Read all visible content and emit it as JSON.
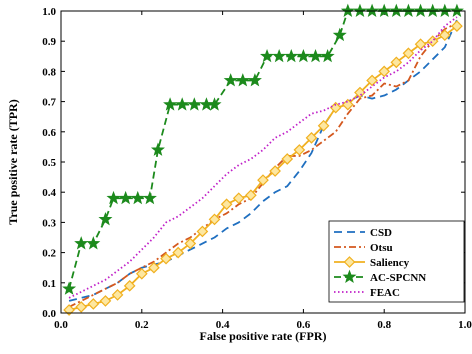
{
  "chart_data": {
    "type": "line",
    "title": "",
    "xlabel": "False positive rate (FPR)",
    "ylabel": "True positive rate (TPR)",
    "xlim": [
      0,
      1
    ],
    "ylim": [
      0,
      1
    ],
    "x_ticks": [
      "0.0",
      "0.2",
      "0.4",
      "0.6",
      "0.8",
      "1.0"
    ],
    "y_ticks": [
      "0.0",
      "0.1",
      "0.2",
      "0.3",
      "0.4",
      "0.5",
      "0.6",
      "0.7",
      "0.8",
      "0.9",
      "1.0"
    ],
    "grid": false,
    "legend_position": "bottom-right",
    "series": [
      {
        "name": "CSD",
        "color": "#1f6fc0",
        "dash": "8,5",
        "marker": "none",
        "x": [
          0.02,
          0.05,
          0.08,
          0.11,
          0.14,
          0.17,
          0.2,
          0.23,
          0.26,
          0.29,
          0.32,
          0.35,
          0.38,
          0.41,
          0.44,
          0.47,
          0.5,
          0.53,
          0.56,
          0.59,
          0.62,
          0.65,
          0.68,
          0.71,
          0.74,
          0.77,
          0.8,
          0.83,
          0.86,
          0.89,
          0.92,
          0.95,
          0.98
        ],
        "y": [
          0.04,
          0.05,
          0.06,
          0.08,
          0.1,
          0.13,
          0.15,
          0.16,
          0.17,
          0.19,
          0.21,
          0.23,
          0.25,
          0.28,
          0.3,
          0.33,
          0.37,
          0.4,
          0.42,
          0.47,
          0.53,
          0.62,
          0.68,
          0.7,
          0.72,
          0.71,
          0.72,
          0.74,
          0.77,
          0.8,
          0.84,
          0.88,
          0.97
        ]
      },
      {
        "name": "Otsu",
        "color": "#d4581e",
        "dash": "7,3,2,3",
        "marker": "none",
        "x": [
          0.02,
          0.05,
          0.08,
          0.11,
          0.14,
          0.17,
          0.2,
          0.23,
          0.26,
          0.29,
          0.32,
          0.35,
          0.38,
          0.41,
          0.44,
          0.47,
          0.5,
          0.53,
          0.56,
          0.59,
          0.62,
          0.65,
          0.68,
          0.71,
          0.74,
          0.77,
          0.8,
          0.83,
          0.86,
          0.89,
          0.92,
          0.95,
          0.98
        ],
        "y": [
          0.02,
          0.04,
          0.06,
          0.08,
          0.1,
          0.13,
          0.15,
          0.17,
          0.2,
          0.23,
          0.25,
          0.28,
          0.31,
          0.33,
          0.36,
          0.38,
          0.43,
          0.48,
          0.52,
          0.52,
          0.54,
          0.57,
          0.6,
          0.66,
          0.71,
          0.72,
          0.76,
          0.75,
          0.77,
          0.85,
          0.9,
          0.94,
          0.96
        ]
      },
      {
        "name": "Saliency",
        "color": "#f0b020",
        "dash": "",
        "marker": "diamond",
        "x": [
          0.02,
          0.05,
          0.08,
          0.11,
          0.14,
          0.17,
          0.2,
          0.23,
          0.26,
          0.29,
          0.32,
          0.35,
          0.38,
          0.41,
          0.44,
          0.47,
          0.5,
          0.53,
          0.56,
          0.59,
          0.62,
          0.65,
          0.68,
          0.71,
          0.74,
          0.77,
          0.8,
          0.83,
          0.86,
          0.89,
          0.92,
          0.95,
          0.98
        ],
        "y": [
          0.01,
          0.02,
          0.03,
          0.04,
          0.06,
          0.09,
          0.13,
          0.15,
          0.18,
          0.2,
          0.23,
          0.27,
          0.31,
          0.36,
          0.38,
          0.39,
          0.44,
          0.47,
          0.51,
          0.54,
          0.58,
          0.62,
          0.68,
          0.69,
          0.73,
          0.77,
          0.8,
          0.83,
          0.86,
          0.89,
          0.9,
          0.92,
          0.95
        ]
      },
      {
        "name": "AC-SPCNN",
        "color": "#1c8a1c",
        "dash": "7,4",
        "marker": "star",
        "x": [
          0.02,
          0.05,
          0.08,
          0.11,
          0.13,
          0.16,
          0.19,
          0.22,
          0.24,
          0.27,
          0.3,
          0.33,
          0.36,
          0.38,
          0.42,
          0.45,
          0.48,
          0.51,
          0.54,
          0.57,
          0.6,
          0.63,
          0.66,
          0.69,
          0.71,
          0.74,
          0.77,
          0.8,
          0.83,
          0.86,
          0.89,
          0.92,
          0.95,
          0.98
        ],
        "y": [
          0.08,
          0.23,
          0.23,
          0.31,
          0.38,
          0.38,
          0.38,
          0.38,
          0.54,
          0.69,
          0.69,
          0.69,
          0.69,
          0.69,
          0.77,
          0.77,
          0.77,
          0.85,
          0.85,
          0.85,
          0.85,
          0.85,
          0.85,
          0.92,
          1.0,
          1.0,
          1.0,
          1.0,
          1.0,
          1.0,
          1.0,
          1.0,
          1.0,
          1.0
        ]
      },
      {
        "name": "FEAC",
        "color": "#c020c8",
        "dash": "1.5,2.5",
        "marker": "none",
        "x": [
          0.02,
          0.05,
          0.08,
          0.11,
          0.14,
          0.17,
          0.2,
          0.23,
          0.26,
          0.29,
          0.32,
          0.35,
          0.38,
          0.41,
          0.44,
          0.47,
          0.5,
          0.53,
          0.56,
          0.59,
          0.62,
          0.65,
          0.68,
          0.71,
          0.74,
          0.77,
          0.8,
          0.83,
          0.86,
          0.89,
          0.92,
          0.95,
          0.98
        ],
        "y": [
          0.05,
          0.07,
          0.09,
          0.11,
          0.14,
          0.17,
          0.21,
          0.25,
          0.3,
          0.32,
          0.35,
          0.38,
          0.42,
          0.46,
          0.49,
          0.51,
          0.54,
          0.58,
          0.6,
          0.63,
          0.66,
          0.67,
          0.69,
          0.7,
          0.72,
          0.75,
          0.78,
          0.8,
          0.83,
          0.87,
          0.9,
          0.95,
          0.98
        ]
      }
    ]
  }
}
